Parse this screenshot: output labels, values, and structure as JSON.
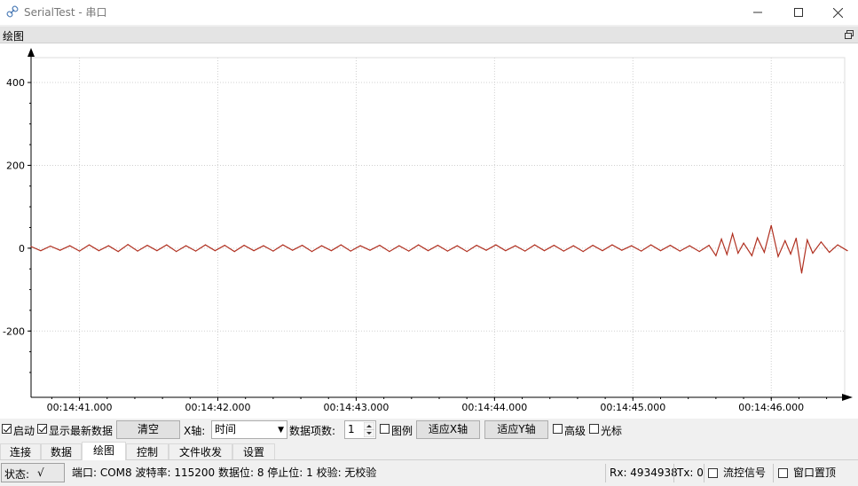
{
  "window": {
    "title": "SerialTest - 串口",
    "icons": {
      "app": "link-icon",
      "minimize": "minimize-icon",
      "maximize": "maximize-icon",
      "close": "close-icon"
    }
  },
  "dock": {
    "title": "绘图",
    "float_icon": "float-window-icon"
  },
  "chart_data": {
    "type": "line",
    "title": "",
    "xlabel": "",
    "ylabel": "",
    "ylim": [
      -360,
      460
    ],
    "yticks": [
      400,
      200,
      0,
      -200
    ],
    "ytick_labels": [
      "400",
      "200",
      "0",
      "-200"
    ],
    "xticks": [
      0,
      1,
      2,
      3,
      4,
      5
    ],
    "xtick_labels": [
      "00:14:41.000",
      "00:14:42.000",
      "00:14:43.000",
      "00:14:44.000",
      "00:14:45.000",
      "00:14:46.000"
    ],
    "xlim": [
      -0.35,
      5.55
    ],
    "grid": true,
    "line_color": "#b03020",
    "series": [
      {
        "values_x": [
          -0.35,
          -0.28,
          -0.21,
          -0.14,
          -0.07,
          0.0,
          0.07,
          0.14,
          0.21,
          0.28,
          0.35,
          0.42,
          0.49,
          0.56,
          0.63,
          0.7,
          0.77,
          0.84,
          0.91,
          0.98,
          1.05,
          1.12,
          1.19,
          1.26,
          1.33,
          1.4,
          1.47,
          1.54,
          1.61,
          1.68,
          1.75,
          1.82,
          1.89,
          1.96,
          2.03,
          2.1,
          2.17,
          2.24,
          2.31,
          2.38,
          2.45,
          2.52,
          2.59,
          2.66,
          2.73,
          2.8,
          2.87,
          2.94,
          3.01,
          3.08,
          3.15,
          3.22,
          3.29,
          3.36,
          3.43,
          3.5,
          3.57,
          3.64,
          3.71,
          3.78,
          3.85,
          3.92,
          3.99,
          4.06,
          4.13,
          4.2,
          4.27,
          4.34,
          4.41,
          4.48,
          4.55,
          4.6,
          4.64,
          4.68,
          4.72,
          4.76,
          4.8,
          4.86,
          4.9,
          4.95,
          5.0,
          5.05,
          5.1,
          5.14,
          5.18,
          5.22,
          5.26,
          5.3,
          5.36,
          5.42,
          5.48,
          5.55
        ],
        "values_y": [
          4,
          -6,
          5,
          -5,
          6,
          -7,
          8,
          -6,
          6,
          -8,
          9,
          -7,
          7,
          -6,
          8,
          -8,
          6,
          -7,
          8,
          -6,
          7,
          -8,
          7,
          -6,
          6,
          -7,
          8,
          -5,
          7,
          -8,
          6,
          -6,
          8,
          -7,
          6,
          -5,
          7,
          -8,
          6,
          -7,
          8,
          -6,
          7,
          -7,
          6,
          -8,
          7,
          -5,
          8,
          -6,
          6,
          -7,
          8,
          -6,
          7,
          -7,
          6,
          -8,
          7,
          -6,
          8,
          -5,
          6,
          -7,
          8,
          -6,
          7,
          -7,
          6,
          -8,
          7,
          -18,
          22,
          -15,
          35,
          -12,
          12,
          -18,
          25,
          -10,
          55,
          -20,
          18,
          -14,
          24,
          -60,
          20,
          -12,
          15,
          -10,
          8,
          -6
        ]
      }
    ]
  },
  "controls": {
    "start_label": "启动",
    "start_checked": true,
    "show_latest_label": "显示最新数据",
    "show_latest_checked": true,
    "clear_button": "清空",
    "x_axis_label": "X轴:",
    "x_axis_value": "时间",
    "item_count_label": "数据项数:",
    "item_count_value": "1",
    "legend_label": "图例",
    "legend_checked": false,
    "fit_x_button": "适应X轴",
    "fit_y_button": "适应Y轴",
    "advanced_label": "高级",
    "advanced_checked": false,
    "cursor_label": "光标",
    "cursor_checked": false
  },
  "tabs": [
    {
      "label": "连接",
      "active": false
    },
    {
      "label": "数据",
      "active": false
    },
    {
      "label": "绘图",
      "active": true
    },
    {
      "label": "控制",
      "active": false
    },
    {
      "label": "文件收发",
      "active": false
    },
    {
      "label": "设置",
      "active": false
    }
  ],
  "status": {
    "state_label": "状态:",
    "state_value": "√",
    "port_info": "端口: COM8 波特率: 115200 数据位: 8 停止位: 1 校验: 无校验",
    "rx": "Rx: 4934938",
    "tx": "Tx: 0",
    "flow_label": "流控信号",
    "flow_checked": false,
    "ontop_label": "窗口置顶",
    "ontop_checked": false
  }
}
